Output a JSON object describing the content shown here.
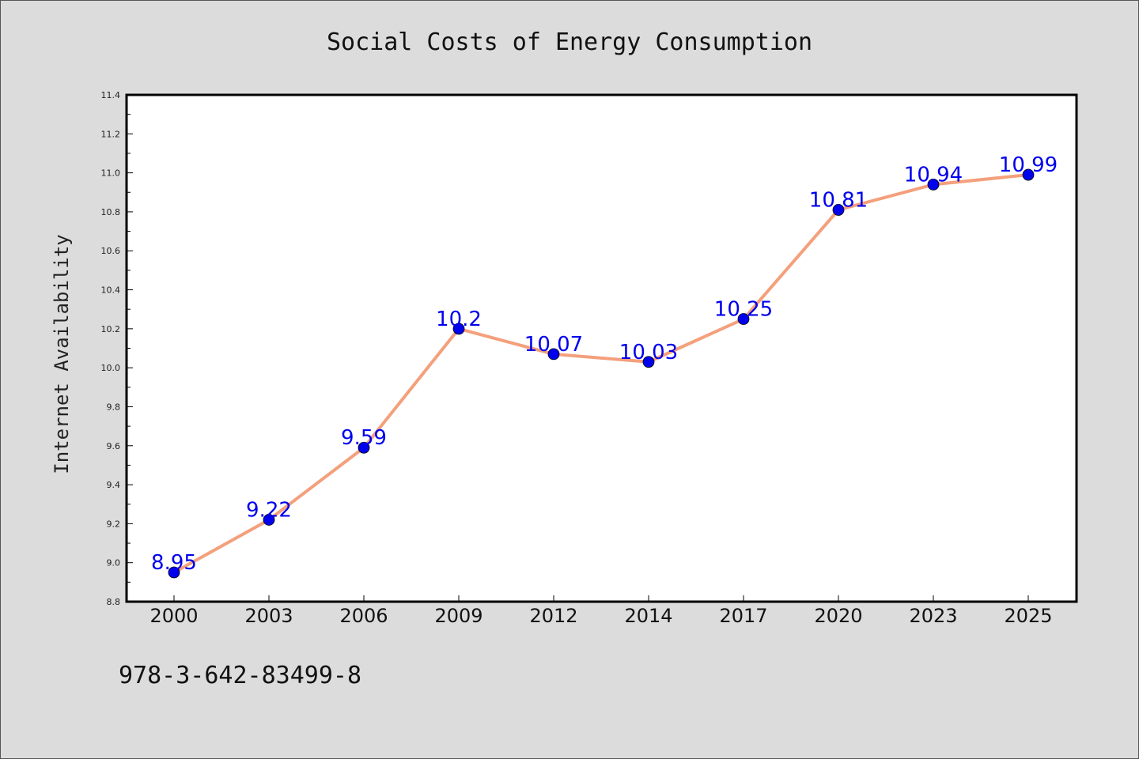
{
  "chart_data": {
    "type": "line",
    "title": "Social Costs of Energy Consumption",
    "ylabel": "Internet Availability",
    "xlabel": "",
    "categories": [
      "2000",
      "2003",
      "2006",
      "2009",
      "2012",
      "2014",
      "2017",
      "2020",
      "2023",
      "2025"
    ],
    "series": [
      {
        "values": [
          8.95,
          9.22,
          9.59,
          10.2,
          10.07,
          10.03,
          10.25,
          10.81,
          10.94,
          10.99
        ],
        "data_labels": [
          "8.95",
          "9.22",
          "9.59",
          "10.2",
          "10.07",
          "10.03",
          "10.25",
          "10.81",
          "10.94",
          "10.99"
        ],
        "line_color": "#f4a07c",
        "marker_color": "#0000ee",
        "label_color": "#0000ee"
      }
    ],
    "ylim": [
      8.8,
      11.4
    ],
    "yticks": [
      "8.8",
      "9.0",
      "9.2",
      "9.4",
      "9.6",
      "9.8",
      "10.0",
      "10.2",
      "10.4",
      "10.6",
      "10.8",
      "11.0",
      "11.2",
      "11.4"
    ],
    "grid": false,
    "legend": "none"
  },
  "footer": {
    "code": "978-3-642-83499-8"
  },
  "colors": {
    "background": "#dcdcdc",
    "plot_background": "#ffffff"
  }
}
